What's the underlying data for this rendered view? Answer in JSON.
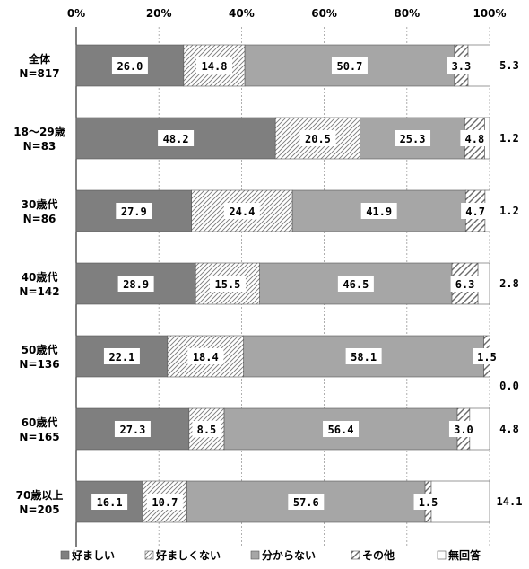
{
  "chart_data": {
    "type": "bar",
    "orientation": "horizontal",
    "stacked": "percent",
    "xlim": [
      0,
      100
    ],
    "x_ticks": [
      "0%",
      "20%",
      "40%",
      "60%",
      "80%",
      "100%"
    ],
    "grid": true,
    "legend_position": "bottom",
    "categories": [
      [
        "全体",
        "N=817"
      ],
      [
        "18～29歳",
        "N=83"
      ],
      [
        "30歳代",
        "N=86"
      ],
      [
        "40歳代",
        "N=142"
      ],
      [
        "50歳代",
        "N=136"
      ],
      [
        "60歳代",
        "N=165"
      ],
      [
        "70歳以上",
        "N=205"
      ]
    ],
    "series": [
      {
        "name": "好ましい",
        "style": "solid-dark",
        "color": "#7f7f7f",
        "values": [
          26.0,
          48.2,
          27.9,
          28.9,
          22.1,
          27.3,
          16.1
        ],
        "labels": [
          "26.0",
          "48.2",
          "27.9",
          "28.9",
          "22.1",
          "27.3",
          "16.1"
        ]
      },
      {
        "name": "好ましくない",
        "style": "hatch-fine",
        "color": "#c8c8c8",
        "values": [
          14.8,
          20.5,
          24.4,
          15.5,
          18.4,
          8.5,
          10.7
        ],
        "labels": [
          "14.8",
          "20.5",
          "24.4",
          "15.5",
          "18.4",
          "8.5",
          "10.7"
        ]
      },
      {
        "name": "分からない",
        "style": "solid-light",
        "color": "#a6a6a6",
        "values": [
          50.7,
          25.3,
          41.9,
          46.5,
          58.1,
          56.4,
          57.6
        ],
        "labels": [
          "50.7",
          "25.3",
          "41.9",
          "46.5",
          "58.1",
          "56.4",
          "57.6"
        ]
      },
      {
        "name": "その他",
        "style": "hatch-wide",
        "color": "#8c8c8c",
        "values": [
          3.3,
          4.8,
          4.7,
          6.3,
          1.5,
          3.0,
          1.5
        ],
        "labels": [
          "3.3",
          "4.8",
          "4.7",
          "6.3",
          "1.5",
          "3.0",
          "1.5"
        ]
      },
      {
        "name": "無回答",
        "style": "white",
        "color": "#ffffff",
        "values": [
          5.3,
          1.2,
          1.2,
          2.8,
          0.0,
          4.8,
          14.1
        ],
        "labels": [
          "5.3",
          "1.2",
          "1.2",
          "2.8",
          "0.0",
          "4.8",
          "14.1"
        ]
      }
    ]
  }
}
